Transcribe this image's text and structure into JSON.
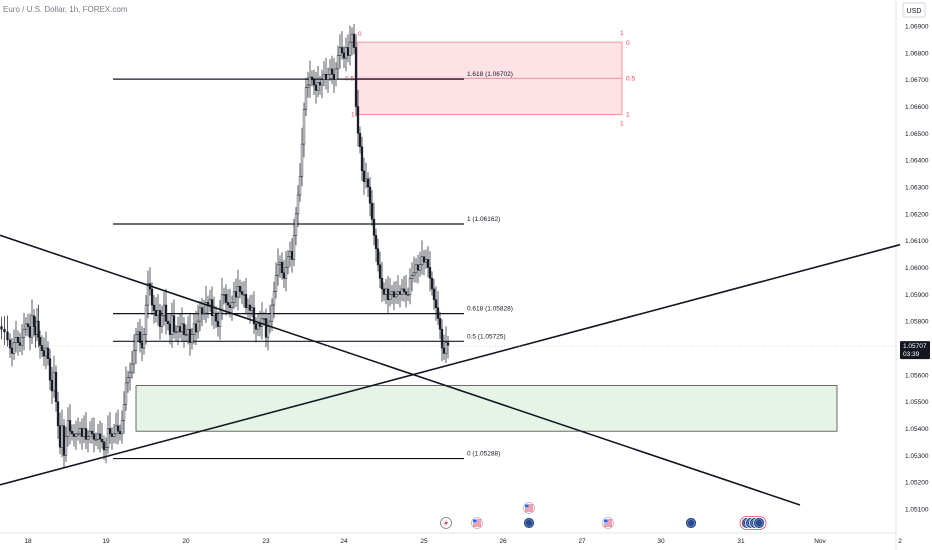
{
  "header": {
    "title": "Euro / U.S. Dollar, 1h, FOREX.com",
    "currency": "USD"
  },
  "chart_data": {
    "type": "candlestick",
    "instrument": "Euro / U.S. Dollar",
    "timeframe": "1h",
    "source": "FOREX.com",
    "y_axis": {
      "ticks": [
        "1.06900",
        "1.06800",
        "1.06700",
        "1.06600",
        "1.06500",
        "1.06400",
        "1.06300",
        "1.06200",
        "1.06100",
        "1.06000",
        "1.05900",
        "1.05800",
        "1.05700",
        "1.05600",
        "1.05500",
        "1.05400",
        "1.05300",
        "1.05200",
        "1.05100"
      ],
      "range": [
        1.0505,
        1.0702
      ]
    },
    "x_axis": {
      "ticks": [
        "18",
        "19",
        "20",
        "23",
        "24",
        "25",
        "26",
        "27",
        "30",
        "31",
        "Nov",
        "2"
      ]
    },
    "current_price": {
      "value": "1.05707",
      "countdown": "03:39"
    },
    "close_path": [
      [
        0,
        1.0578
      ],
      [
        3,
        1.0577
      ],
      [
        6,
        1.0576
      ],
      [
        9,
        1.0573
      ],
      [
        11,
        1.057
      ],
      [
        13,
        1.0568
      ],
      [
        15,
        1.0572
      ],
      [
        17,
        1.0574
      ],
      [
        19,
        1.0572
      ],
      [
        21,
        1.0571
      ],
      [
        23,
        1.0574
      ],
      [
        25,
        1.0577
      ],
      [
        27,
        1.0579
      ],
      [
        29,
        1.0578
      ],
      [
        31,
        1.0574
      ],
      [
        33,
        1.0582
      ],
      [
        35,
        1.0578
      ],
      [
        36,
        1.0575
      ],
      [
        38,
        1.058
      ],
      [
        39,
        1.0574
      ],
      [
        41,
        1.0571
      ],
      [
        43,
        1.0569
      ],
      [
        45,
        1.0567
      ],
      [
        47,
        1.057
      ],
      [
        49,
        1.0566
      ],
      [
        51,
        1.0558
      ],
      [
        53,
        1.0554
      ],
      [
        55,
        1.0561
      ],
      [
        57,
        1.055
      ],
      [
        59,
        1.0541
      ],
      [
        61,
        1.0533
      ],
      [
        63,
        1.0541
      ],
      [
        65,
        1.053
      ],
      [
        67,
        1.0537
      ],
      [
        69,
        1.0543
      ],
      [
        71,
        1.0539
      ],
      [
        73,
        1.0538
      ],
      [
        75,
        1.0537
      ],
      [
        77,
        1.0538
      ],
      [
        79,
        1.0538
      ],
      [
        81,
        1.054
      ],
      [
        83,
        1.0537
      ],
      [
        85,
        1.054
      ],
      [
        87,
        1.0536
      ],
      [
        89,
        1.0537
      ],
      [
        91,
        1.0539
      ],
      [
        93,
        1.0538
      ],
      [
        95,
        1.0536
      ],
      [
        97,
        1.0536
      ],
      [
        99,
        1.0538
      ],
      [
        101,
        1.0536
      ],
      [
        103,
        1.0535
      ],
      [
        105,
        1.0532
      ],
      [
        107,
        1.0533
      ],
      [
        109,
        1.054
      ],
      [
        111,
        1.0538
      ],
      [
        113,
        1.0537
      ],
      [
        115,
        1.0538
      ],
      [
        117,
        1.0541
      ],
      [
        119,
        1.0539
      ],
      [
        121,
        1.0538
      ],
      [
        123,
        1.0543
      ],
      [
        125,
        1.0549
      ],
      [
        127,
        1.0557
      ],
      [
        129,
        1.0559
      ],
      [
        131,
        1.0561
      ],
      [
        133,
        1.0564
      ],
      [
        135,
        1.0569
      ],
      [
        137,
        1.0575
      ],
      [
        139,
        1.0576
      ],
      [
        141,
        1.0572
      ],
      [
        143,
        1.057
      ],
      [
        145,
        1.0575
      ],
      [
        147,
        1.0586
      ],
      [
        149,
        1.0594
      ],
      [
        151,
        1.0592
      ],
      [
        153,
        1.0586
      ],
      [
        155,
        1.0584
      ],
      [
        157,
        1.0582
      ],
      [
        159,
        1.0584
      ],
      [
        161,
        1.0578
      ],
      [
        163,
        1.0582
      ],
      [
        165,
        1.0586
      ],
      [
        167,
        1.058
      ],
      [
        169,
        1.0579
      ],
      [
        171,
        1.0575
      ],
      [
        173,
        1.0582
      ],
      [
        175,
        1.0576
      ],
      [
        177,
        1.0576
      ],
      [
        179,
        1.0578
      ],
      [
        181,
        1.0576
      ],
      [
        183,
        1.0579
      ],
      [
        185,
        1.0575
      ],
      [
        187,
        1.0575
      ],
      [
        189,
        1.0577
      ],
      [
        191,
        1.0572
      ],
      [
        193,
        1.0575
      ],
      [
        195,
        1.0579
      ],
      [
        197,
        1.0576
      ],
      [
        199,
        1.058
      ],
      [
        201,
        1.0585
      ],
      [
        203,
        1.0583
      ],
      [
        205,
        1.0583
      ],
      [
        207,
        1.0587
      ],
      [
        209,
        1.0586
      ],
      [
        211,
        1.0588
      ],
      [
        213,
        1.0582
      ],
      [
        215,
        1.0583
      ],
      [
        217,
        1.058
      ],
      [
        219,
        1.0578
      ],
      [
        221,
        1.0583
      ],
      [
        223,
        1.059
      ],
      [
        225,
        1.059
      ],
      [
        227,
        1.0587
      ],
      [
        229,
        1.0586
      ],
      [
        231,
        1.0585
      ],
      [
        233,
        1.0587
      ],
      [
        235,
        1.0591
      ],
      [
        237,
        1.0589
      ],
      [
        239,
        1.0593
      ],
      [
        241,
        1.0591
      ],
      [
        243,
        1.059
      ],
      [
        245,
        1.059
      ],
      [
        247,
        1.0585
      ],
      [
        249,
        1.0586
      ],
      [
        251,
        1.0584
      ],
      [
        253,
        1.0585
      ],
      [
        255,
        1.0579
      ],
      [
        257,
        1.0577
      ],
      [
        259,
        1.0579
      ],
      [
        261,
        1.0578
      ],
      [
        263,
        1.0581
      ],
      [
        265,
        1.0581
      ],
      [
        267,
        1.0574
      ],
      [
        269,
        1.0578
      ],
      [
        271,
        1.058
      ],
      [
        273,
        1.0586
      ],
      [
        275,
        1.0591
      ],
      [
        277,
        1.0597
      ],
      [
        279,
        1.0601
      ],
      [
        281,
        1.0602
      ],
      [
        283,
        1.0598
      ],
      [
        285,
        1.0596
      ],
      [
        287,
        1.06
      ],
      [
        289,
        1.0604
      ],
      [
        291,
        1.0606
      ],
      [
        293,
        1.0603
      ],
      [
        295,
        1.0612
      ],
      [
        297,
        1.062
      ],
      [
        299,
        1.0627
      ],
      [
        301,
        1.0634
      ],
      [
        303,
        1.0646
      ],
      [
        305,
        1.0659
      ],
      [
        307,
        1.0667
      ],
      [
        309,
        1.0668
      ],
      [
        311,
        1.0671
      ],
      [
        313,
        1.067
      ],
      [
        315,
        1.0668
      ],
      [
        317,
        1.0666
      ],
      [
        319,
        1.0669
      ],
      [
        321,
        1.0668
      ],
      [
        323,
        1.067
      ],
      [
        325,
        1.0672
      ],
      [
        327,
        1.067
      ],
      [
        329,
        1.0672
      ],
      [
        331,
        1.0674
      ],
      [
        333,
        1.0672
      ],
      [
        335,
        1.067
      ],
      [
        337,
        1.0674
      ],
      [
        339,
        1.0679
      ],
      [
        341,
        1.0682
      ],
      [
        343,
        1.068
      ],
      [
        345,
        1.0678
      ],
      [
        347,
        1.0682
      ],
      [
        349,
        1.0679
      ],
      [
        351,
        1.0684
      ],
      [
        353,
        1.0687
      ],
      [
        355,
        1.0682
      ],
      [
        357,
        1.066
      ],
      [
        359,
        1.065
      ],
      [
        361,
        1.0645
      ],
      [
        363,
        1.0636
      ],
      [
        365,
        1.0632
      ],
      [
        367,
        1.0633
      ],
      [
        369,
        1.063
      ],
      [
        371,
        1.0624
      ],
      [
        373,
        1.0618
      ],
      [
        375,
        1.0612
      ],
      [
        377,
        1.0607
      ],
      [
        379,
        1.0601
      ],
      [
        381,
        1.0596
      ],
      [
        383,
        1.0592
      ],
      [
        385,
        1.059
      ],
      [
        387,
        1.0592
      ],
      [
        389,
        1.0588
      ],
      [
        391,
        1.059
      ],
      [
        393,
        1.0591
      ],
      [
        395,
        1.0589
      ],
      [
        397,
        1.059
      ],
      [
        399,
        1.0591
      ],
      [
        401,
        1.059
      ],
      [
        403,
        1.0592
      ],
      [
        405,
        1.0591
      ],
      [
        407,
        1.059
      ],
      [
        409,
        1.059
      ],
      [
        411,
        1.0596
      ],
      [
        413,
        1.0597
      ],
      [
        415,
        1.0598
      ],
      [
        417,
        1.0601
      ],
      [
        419,
        1.0599
      ],
      [
        421,
        1.0601
      ],
      [
        423,
        1.0604
      ],
      [
        425,
        1.0602
      ],
      [
        427,
        1.0603
      ],
      [
        429,
        1.06
      ],
      [
        431,
        1.0596
      ],
      [
        433,
        1.0592
      ],
      [
        435,
        1.0588
      ],
      [
        437,
        1.0585
      ],
      [
        439,
        1.0581
      ],
      [
        441,
        1.0577
      ],
      [
        443,
        1.057
      ],
      [
        445,
        1.0568
      ],
      [
        447,
        1.0572
      ],
      [
        449,
        1.0571
      ]
    ],
    "fib_levels": [
      {
        "label": "1.618 (1.06702)",
        "value": 1.06702
      },
      {
        "label": "1 (1.06162)",
        "value": 1.06162
      },
      {
        "label": "0.618 (1.05828)",
        "value": 1.05828
      },
      {
        "label": "0.5 (1.05725)",
        "value": 1.05725
      },
      {
        "label": "0 (1.05288)",
        "value": 1.05288
      }
    ],
    "red_zone": {
      "top": 1.0684,
      "mid": 1.06705,
      "bottom": 1.0657,
      "labels": {
        "top_left": "0",
        "mid_left": "0.5",
        "bottom_left": "1",
        "top_right": "0",
        "mid_right": "0.5",
        "bottom_right": "1",
        "corner_top": "1",
        "corner_bottom": "1"
      }
    },
    "green_zone": {
      "top": 1.0556,
      "bottom": 1.0539
    },
    "trendlines": [
      {
        "name": "descending",
        "from": [
          0,
          1.0612
        ],
        "to": [
          800,
          1.05115
        ]
      },
      {
        "name": "ascending",
        "from": [
          0,
          1.0519
        ],
        "to": [
          900,
          1.06085
        ]
      }
    ],
    "colors": {
      "bull": "#131722",
      "bear": "#131722",
      "red_zone_fill": "#fde3e6",
      "red_zone_stroke": "#f08090",
      "green_zone_fill": "#e6f4e8",
      "green_zone_stroke": "#2e2e2e",
      "axis_text": "#131722",
      "current_label_bg": "#131722"
    },
    "event_icons": [
      {
        "x": 446,
        "icon": "lightning-icon"
      },
      {
        "x": 477,
        "icon": "us-flag-icon"
      },
      {
        "x": 529,
        "icon": "us-flag-icon"
      },
      {
        "x": 529,
        "icon": "globe-icon"
      },
      {
        "x": 608,
        "icon": "us-flag-icon"
      },
      {
        "x": 691,
        "icon": "globe-icon"
      },
      {
        "x": 747,
        "icon": "globe-icon"
      },
      {
        "x": 751,
        "icon": "globe-icon"
      },
      {
        "x": 755,
        "icon": "globe-icon"
      },
      {
        "x": 759,
        "icon": "globe-icon"
      }
    ]
  }
}
